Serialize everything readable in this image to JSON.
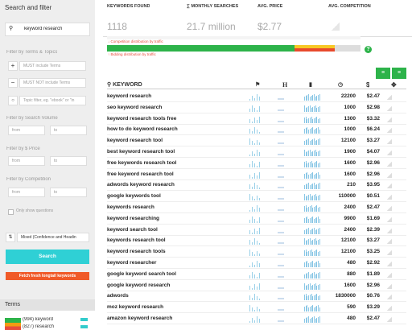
{
  "sidebar": {
    "title": "Search and filter",
    "search_value": "keyword research",
    "sections": {
      "terms": "Filter by Terms & Topics",
      "volume": "Filter by Search Volume",
      "price": "Filter by $ Price",
      "competition": "Filter by Competition"
    },
    "inputs": {
      "must": "MUST include Terms",
      "must_not": "MUST NOT include Terms",
      "topic": "Topic filter, eg. \"ebook\" or \"in"
    },
    "from": "from",
    "to": "to",
    "questions": "Only show questions",
    "sort": "Mixed (Confidence and Headin",
    "search_button": "Search",
    "fetch_button": "Fetch fresh longtail keywords",
    "terms_title": "Terms",
    "terms": [
      "(994) keyword",
      "(827) research"
    ]
  },
  "stats": {
    "labels": [
      "KEYWORDS FOUND",
      "∑ MONTHLY SEARCHES",
      "AVG. PRICE",
      "AVG. COMPETITION"
    ],
    "values": [
      "1118",
      "21.7 million",
      "$2.77"
    ],
    "competition_legend": "Competition distribution by traffic",
    "bidding_legend": "Bidding distribution by traffic"
  },
  "table": {
    "headers": {
      "keyword": "KEYWORD",
      "h": "H",
      "price": "$"
    },
    "rows": [
      [
        "keyword research",
        22200,
        "$2.47"
      ],
      [
        "seo keyword research",
        1000,
        "$2.98"
      ],
      [
        "keyword research tools free",
        1300,
        "$3.32"
      ],
      [
        "how to do keyword research",
        1000,
        "$6.24"
      ],
      [
        "keyword research tool",
        12100,
        "$3.27"
      ],
      [
        "best keyword research tool",
        1900,
        "$4.07"
      ],
      [
        "free keywords research tool",
        1600,
        "$2.96"
      ],
      [
        "free keyword research tool",
        1600,
        "$2.96"
      ],
      [
        "adwords keyword research",
        210,
        "$3.95"
      ],
      [
        "google keywords tool",
        110000,
        "$0.51"
      ],
      [
        "keywords research",
        2400,
        "$2.47"
      ],
      [
        "keyword researching",
        9900,
        "$1.69"
      ],
      [
        "keyword search tool",
        2400,
        "$2.39"
      ],
      [
        "keywords research tool",
        12100,
        "$3.27"
      ],
      [
        "keyword research tools",
        12100,
        "$3.25"
      ],
      [
        "keyword researcher",
        480,
        "$2.92"
      ],
      [
        "google keyword search tool",
        880,
        "$1.89"
      ],
      [
        "google keyword research",
        1600,
        "$2.96"
      ],
      [
        "adwords",
        1830000,
        "$0.76"
      ],
      [
        "moz keyword research",
        590,
        "$3.29"
      ],
      [
        "amazon keyword research",
        480,
        "$2.47"
      ]
    ]
  }
}
